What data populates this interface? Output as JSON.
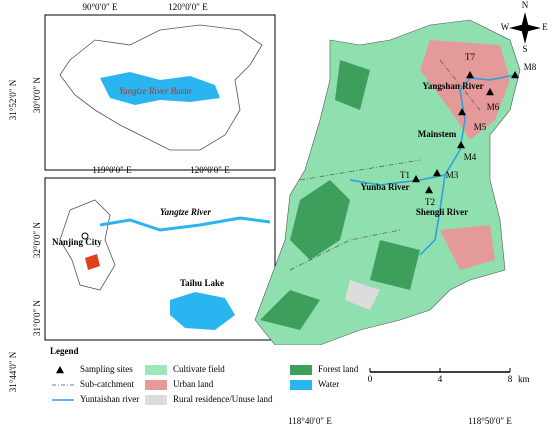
{
  "insets": [
    {
      "lon_labels": [
        "90°0′0″ E",
        "120°0′0″ E"
      ],
      "lat_labels": [
        "30°0′0″ N"
      ],
      "labels": [
        "Yangtze River Basin"
      ]
    },
    {
      "lon_labels": [
        "119°0′0″ E",
        "120°0′0″ E"
      ],
      "lat_labels": [
        "32°0′0″ N",
        "31°0′0″ N"
      ],
      "labels": [
        "Nanjing City",
        "Yangtze River",
        "Taihu Lake"
      ]
    }
  ],
  "main_map": {
    "lat_labels": [
      "31°52′0″ N",
      "31°44′0″ N"
    ],
    "lon_labels": [
      "118°40′0″ E",
      "118°50′0″ E"
    ],
    "sites": [
      "T7",
      "M8",
      "M6",
      "M5",
      "M4",
      "M3",
      "T1",
      "T2"
    ],
    "rivers": [
      "Yangshan River",
      "Mainstem",
      "Yunba River",
      "Shengli River"
    ],
    "compass": [
      "N",
      "E",
      "S",
      "W"
    ],
    "scale": {
      "ticks": [
        0,
        4,
        8
      ],
      "unit": "km"
    }
  },
  "legend": {
    "title": "Legend",
    "items": [
      {
        "label": "Sampling sites",
        "symbol": "triangle",
        "color": "#000000"
      },
      {
        "label": "Cultivate field",
        "symbol": "patch",
        "color": "#9be8b8"
      },
      {
        "label": "Forest land",
        "symbol": "patch",
        "color": "#3e9e5c"
      },
      {
        "label": "Sub-catchment",
        "symbol": "dashdot",
        "color": "#555555"
      },
      {
        "label": "Urban land",
        "symbol": "patch",
        "color": "#e59a9a"
      },
      {
        "label": "Water",
        "symbol": "patch",
        "color": "#2bb5f0"
      },
      {
        "label": "Yuntaishan river",
        "symbol": "line",
        "color": "#2a9ee0"
      },
      {
        "label": "Rural residence/Unuse land",
        "symbol": "patch",
        "color": "#dcdcdc"
      }
    ]
  }
}
